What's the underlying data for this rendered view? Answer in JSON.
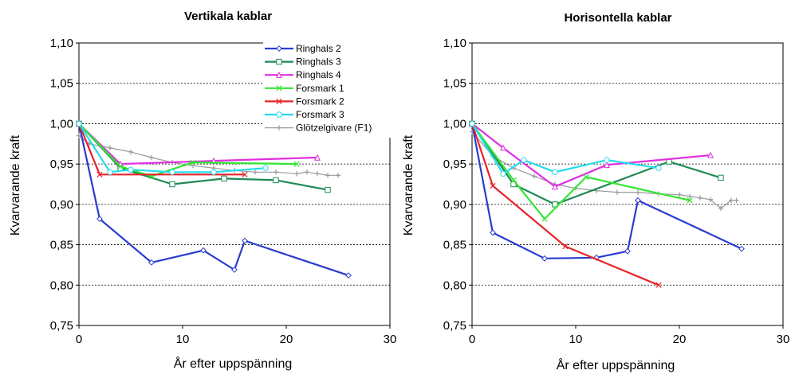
{
  "chart_data": [
    {
      "type": "line",
      "title": "Vertikala kablar",
      "xlabel": "År efter uppspänning",
      "ylabel": "Kvarvarande kraft",
      "xlim": [
        0,
        30
      ],
      "ylim": [
        0.75,
        1.1
      ],
      "x_ticks": [
        "0",
        "10",
        "20",
        "30"
      ],
      "y_ticks": [
        "0,75",
        "0,80",
        "0,85",
        "0,90",
        "0,95",
        "1,00",
        "1,05",
        "1,10"
      ],
      "grid": "horizontal dashed",
      "legend_position": "top-right",
      "series": [
        {
          "name": "Ringhals 2",
          "color": "#2a3ccf",
          "marker": "diamond",
          "points": [
            [
              0,
              1.0
            ],
            [
              2,
              0.882
            ],
            [
              7,
              0.828
            ],
            [
              12,
              0.843
            ],
            [
              15,
              0.819
            ],
            [
              16,
              0.855
            ],
            [
              26,
              0.812
            ]
          ]
        },
        {
          "name": "Ringhals 3",
          "color": "#1f8a55",
          "marker": "square",
          "points": [
            [
              0,
              1.0
            ],
            [
              4,
              0.945
            ],
            [
              9,
              0.925
            ],
            [
              14,
              0.932
            ],
            [
              19,
              0.93
            ],
            [
              24,
              0.918
            ]
          ]
        },
        {
          "name": "Ringhals 4",
          "color": "#e12fe1",
          "marker": "triangle",
          "points": [
            [
              0,
              1.0
            ],
            [
              4,
              0.95
            ],
            [
              13,
              0.954
            ],
            [
              23,
              0.958
            ]
          ]
        },
        {
          "name": "Forsmark 1",
          "color": "#33e633",
          "marker": "x",
          "points": [
            [
              0,
              1.0
            ],
            [
              4,
              0.947
            ],
            [
              7,
              0.935
            ],
            [
              11,
              0.952
            ],
            [
              21,
              0.95
            ]
          ]
        },
        {
          "name": "Forsmark 2",
          "color": "#e8242a",
          "marker": "x",
          "points": [
            [
              0,
              1.0
            ],
            [
              2,
              0.937
            ],
            [
              16,
              0.937
            ]
          ]
        },
        {
          "name": "Forsmark 3",
          "color": "#22dcec",
          "marker": "circle",
          "points": [
            [
              0,
              1.0
            ],
            [
              3,
              0.94
            ],
            [
              5,
              0.943
            ],
            [
              9,
              0.94
            ],
            [
              13,
              0.94
            ],
            [
              18,
              0.945
            ]
          ]
        },
        {
          "name": "Glötzelgivare (F1)",
          "color": "#9a9a9a",
          "marker": "plus",
          "points": [
            [
              0,
              0.985
            ],
            [
              1,
              0.975
            ],
            [
              3,
              0.97
            ],
            [
              5,
              0.965
            ],
            [
              7,
              0.958
            ],
            [
              9,
              0.952
            ],
            [
              11,
              0.948
            ],
            [
              13,
              0.945
            ],
            [
              15,
              0.942
            ],
            [
              17,
              0.94
            ],
            [
              19,
              0.94
            ],
            [
              21,
              0.938
            ],
            [
              22,
              0.94
            ],
            [
              23,
              0.938
            ],
            [
              24,
              0.936
            ],
            [
              25,
              0.936
            ]
          ]
        }
      ]
    },
    {
      "type": "line",
      "title": "Horisontella kablar",
      "xlabel": "År efter uppspänning",
      "ylabel": "Kvarvarande kraft",
      "xlim": [
        0,
        30
      ],
      "ylim": [
        0.75,
        1.1
      ],
      "x_ticks": [
        "0",
        "10",
        "20",
        "30"
      ],
      "y_ticks": [
        "0,75",
        "0,80",
        "0,85",
        "0,90",
        "0,95",
        "1,00",
        "1,05",
        "1,10"
      ],
      "grid": "horizontal dashed",
      "legend_position": "none",
      "series": [
        {
          "name": "Ringhals 2",
          "color": "#2a3ccf",
          "marker": "diamond",
          "points": [
            [
              0,
              1.0
            ],
            [
              2,
              0.865
            ],
            [
              7,
              0.833
            ],
            [
              12,
              0.834
            ],
            [
              15,
              0.842
            ],
            [
              16,
              0.905
            ],
            [
              26,
              0.845
            ]
          ]
        },
        {
          "name": "Ringhals 3",
          "color": "#1f8a55",
          "marker": "square",
          "points": [
            [
              0,
              1.0
            ],
            [
              4,
              0.925
            ],
            [
              8,
              0.9
            ],
            [
              19,
              0.953
            ],
            [
              24,
              0.933
            ]
          ]
        },
        {
          "name": "Ringhals 4",
          "color": "#e12fe1",
          "marker": "triangle",
          "points": [
            [
              0,
              1.0
            ],
            [
              3,
              0.97
            ],
            [
              8,
              0.922
            ],
            [
              13,
              0.949
            ],
            [
              23,
              0.961
            ]
          ]
        },
        {
          "name": "Forsmark 1",
          "color": "#33e633",
          "marker": "x",
          "points": [
            [
              0,
              1.0
            ],
            [
              4,
              0.93
            ],
            [
              7,
              0.882
            ],
            [
              11,
              0.934
            ],
            [
              21,
              0.905
            ]
          ]
        },
        {
          "name": "Forsmark 2",
          "color": "#e8242a",
          "marker": "x",
          "points": [
            [
              0,
              1.0
            ],
            [
              2,
              0.923
            ],
            [
              9,
              0.848
            ],
            [
              18,
              0.8
            ]
          ]
        },
        {
          "name": "Forsmark 3",
          "color": "#22dcec",
          "marker": "circle",
          "points": [
            [
              0,
              1.0
            ],
            [
              3,
              0.938
            ],
            [
              5,
              0.955
            ],
            [
              8,
              0.94
            ],
            [
              13,
              0.955
            ],
            [
              18,
              0.945
            ]
          ]
        },
        {
          "name": "Glötzelgivare (F1)",
          "color": "#9a9a9a",
          "marker": "plus",
          "points": [
            [
              0,
              0.99
            ],
            [
              2,
              0.96
            ],
            [
              4,
              0.945
            ],
            [
              6,
              0.935
            ],
            [
              8,
              0.925
            ],
            [
              10,
              0.92
            ],
            [
              12,
              0.917
            ],
            [
              14,
              0.915
            ],
            [
              16,
              0.915
            ],
            [
              18,
              0.913
            ],
            [
              20,
              0.912
            ],
            [
              21,
              0.91
            ],
            [
              22,
              0.908
            ],
            [
              23,
              0.906
            ],
            [
              24,
              0.895
            ],
            [
              25,
              0.905
            ],
            [
              25.5,
              0.905
            ]
          ]
        }
      ]
    }
  ]
}
